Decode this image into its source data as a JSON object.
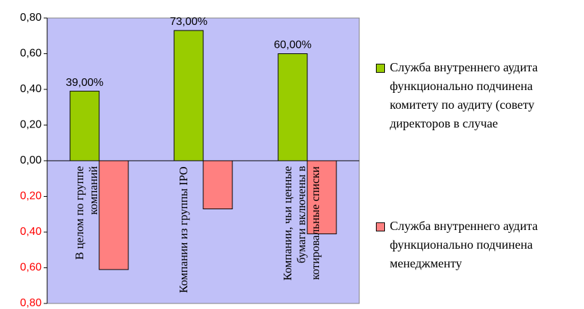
{
  "chart_data": {
    "type": "bar",
    "categories": [
      "В целом по группе компаний",
      "Компании из группы IPO",
      "Компании, чьи ценные бумаги включены в котировальные списки"
    ],
    "series": [
      {
        "name": "Служба внутреннего аудита функционально подчинена комитету по аудиту (совету директоров в случае",
        "color": "#99cc00",
        "values": [
          0.39,
          0.73,
          0.6
        ],
        "value_labels": [
          "39,00%",
          "73,00%",
          "60,00%"
        ]
      },
      {
        "name": "Служба внутреннего аудита функционально подчинена менеджменту",
        "color": "#ff8080",
        "values": [
          -0.61,
          -0.27,
          -0.41
        ]
      }
    ],
    "ylim": [
      -0.8,
      0.8
    ],
    "yticks": [
      {
        "value": 0.8,
        "label": "0,80"
      },
      {
        "value": 0.6,
        "label": "0,60"
      },
      {
        "value": 0.4,
        "label": "0,40"
      },
      {
        "value": 0.2,
        "label": "0,20"
      },
      {
        "value": 0,
        "label": "0,00"
      },
      {
        "value": -0.2,
        "label": "0,20"
      },
      {
        "value": -0.4,
        "label": "0,40"
      },
      {
        "value": -0.6,
        "label": "0,60"
      },
      {
        "value": -0.8,
        "label": "0,80"
      }
    ],
    "negative_tick_color": "#ff0000",
    "plot_background": "#c0c0f8"
  }
}
